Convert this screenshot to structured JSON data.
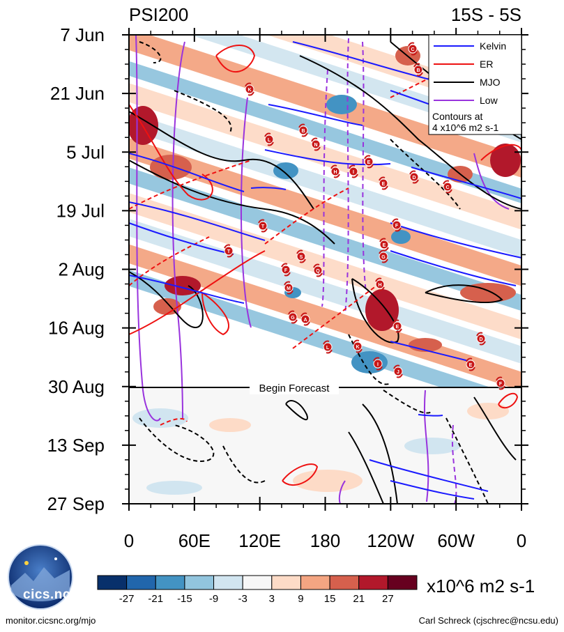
{
  "chart_data": {
    "type": "heatmap",
    "title_left": "PSI200",
    "title_right": "15S - 5S",
    "x_ticks": [
      "0",
      "60E",
      "120E",
      "180",
      "120W",
      "60W",
      "0"
    ],
    "y_ticks": [
      "7 Jun",
      "21 Jun",
      "5 Jul",
      "19 Jul",
      "2 Aug",
      "16 Aug",
      "30 Aug",
      "13 Sep",
      "27 Sep"
    ],
    "forecast_label": "Begin Forecast",
    "legend": [
      {
        "name": "Kelvin",
        "color": "#1a1aff"
      },
      {
        "name": "ER",
        "color": "#ee1111"
      },
      {
        "name": "MJO",
        "color": "#000000"
      },
      {
        "name": "Low",
        "color": "#9933dd"
      }
    ],
    "contour_note_1": "Contours at",
    "contour_note_2": "4 x10^6 m2 s-1",
    "colorbar_levels": [
      "-27",
      "-21",
      "-15",
      "-9",
      "-3",
      "3",
      "9",
      "15",
      "21",
      "27"
    ],
    "colorbar_colors": [
      "#08306b",
      "#2166ac",
      "#4393c3",
      "#92c5de",
      "#d1e5f0",
      "#f7f7f7",
      "#fddbc7",
      "#f4a582",
      "#d6604d",
      "#b2182b",
      "#67001f"
    ],
    "units": "x10^6 m2 s-1",
    "storm_markers": [
      "C",
      "B",
      "K",
      "B",
      "L",
      "N",
      "E",
      "H",
      "I",
      "D",
      "E",
      "C",
      "T",
      "F",
      "E",
      "G",
      "S",
      "T",
      "F",
      "Q",
      "M",
      "G",
      "A",
      "H",
      "E",
      "L",
      "K",
      "D",
      "I",
      "J",
      "E",
      "F"
    ]
  },
  "footer_left": "monitor.cicsnc.org/mjo",
  "footer_right": "Carl Schreck (cjschrec@ncsu.edu)",
  "logo_text": "cics.nc"
}
